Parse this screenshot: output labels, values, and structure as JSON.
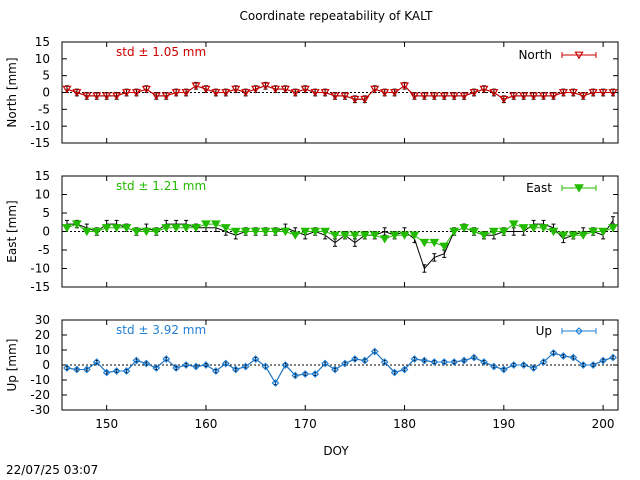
{
  "title": "Coordinate repeatability of KALT",
  "xlabel": "DOY",
  "timestamp": "22/07/25 03:07",
  "chart_data": [
    {
      "type": "line",
      "panel": "north",
      "ylabel": "North [mm]",
      "series_name": "North",
      "std_label": "std ± 1.05 mm",
      "color": "#cc0000",
      "marker": "triangle-down-open",
      "legend_position": "top-right",
      "zero_line": true,
      "xlim": [
        145.5,
        201.5
      ],
      "ylim": [
        -15,
        15
      ],
      "yticks": [
        15,
        10,
        5,
        0,
        -5,
        -10,
        -15
      ],
      "xticks": [
        150,
        160,
        170,
        180,
        190,
        200
      ],
      "x": [
        146,
        147,
        148,
        149,
        150,
        151,
        152,
        153,
        154,
        155,
        156,
        157,
        158,
        159,
        160,
        161,
        162,
        163,
        164,
        165,
        166,
        167,
        168,
        169,
        170,
        171,
        172,
        173,
        174,
        175,
        176,
        177,
        178,
        179,
        180,
        181,
        182,
        183,
        184,
        185,
        186,
        187,
        188,
        189,
        190,
        191,
        192,
        193,
        194,
        195,
        196,
        197,
        198,
        199,
        200,
        201
      ],
      "series": [
        {
          "name": "black",
          "color": "#000000",
          "values": [
            1,
            0,
            -1,
            -1,
            -1,
            -1,
            0,
            0,
            1,
            -1,
            -1,
            0,
            0,
            2,
            1,
            0,
            0,
            1,
            0,
            1,
            2,
            1,
            1,
            0,
            1,
            0,
            0,
            -1,
            -1,
            -2,
            -2,
            1,
            0,
            0,
            2,
            -1,
            -1,
            -1,
            -1,
            -1,
            -1,
            0,
            1,
            0,
            -2,
            -1,
            -1,
            -1,
            -1,
            -1,
            0,
            0,
            -1,
            0,
            0,
            0
          ],
          "errors": [
            1,
            1,
            1,
            1,
            1,
            1,
            1,
            1,
            1,
            1,
            1,
            1,
            1,
            1,
            1,
            1,
            1,
            1,
            1,
            1,
            1,
            1,
            1,
            1,
            1,
            1,
            1,
            1,
            1,
            1,
            1,
            1,
            1,
            1,
            1,
            1,
            1,
            1,
            1,
            1,
            1,
            1,
            1,
            1,
            1,
            1,
            1,
            1,
            1,
            1,
            1,
            1,
            1,
            1,
            1,
            1
          ]
        },
        {
          "name": "North",
          "color": "#cc0000",
          "values": [
            1,
            0,
            -1,
            -1,
            -1,
            -1,
            0,
            0,
            1,
            -1,
            -1,
            0,
            0,
            2,
            1,
            0,
            0,
            1,
            0,
            1,
            2,
            1,
            1,
            0,
            1,
            0,
            0,
            -1,
            -1,
            -2,
            -2,
            1,
            0,
            0,
            2,
            -1,
            -1,
            -1,
            -1,
            -1,
            -1,
            0,
            1,
            0,
            -2,
            -1,
            -1,
            -1,
            -1,
            -1,
            0,
            0,
            -1,
            0,
            0,
            0
          ]
        }
      ]
    },
    {
      "type": "line",
      "panel": "east",
      "ylabel": "East [mm]",
      "series_name": "East",
      "std_label": "std ± 1.21 mm",
      "color": "#22bb00",
      "marker": "triangle-down-filled",
      "legend_position": "top-right",
      "zero_line": true,
      "xlim": [
        145.5,
        201.5
      ],
      "ylim": [
        -15,
        15
      ],
      "yticks": [
        15,
        10,
        5,
        0,
        -5,
        -10,
        -15
      ],
      "xticks": [
        150,
        160,
        170,
        180,
        190,
        200
      ],
      "x": [
        146,
        147,
        148,
        149,
        150,
        151,
        152,
        153,
        154,
        155,
        156,
        157,
        158,
        159,
        160,
        161,
        162,
        163,
        164,
        165,
        166,
        167,
        168,
        169,
        170,
        171,
        172,
        173,
        174,
        175,
        176,
        177,
        178,
        179,
        180,
        181,
        182,
        183,
        184,
        185,
        186,
        187,
        188,
        189,
        190,
        191,
        192,
        193,
        194,
        195,
        196,
        197,
        198,
        199,
        200,
        201
      ],
      "series": [
        {
          "name": "black",
          "color": "#000000",
          "values": [
            2,
            2,
            1,
            0,
            2,
            2,
            1,
            0,
            1,
            0,
            2,
            2,
            2,
            1,
            1,
            1,
            0,
            -1,
            0,
            0,
            0,
            0,
            1,
            0,
            -1,
            0,
            -1,
            -3,
            -1,
            -3,
            -1,
            -1,
            0,
            -1,
            0,
            -2,
            -10,
            -7,
            -6,
            0,
            1,
            0,
            -1,
            -1,
            0,
            0,
            0,
            2,
            2,
            1,
            -2,
            -1,
            0,
            0,
            -1,
            3
          ],
          "errors": [
            1,
            1,
            1,
            1,
            1,
            1,
            1,
            1,
            1,
            1,
            1,
            1,
            1,
            1,
            1,
            1,
            1,
            1,
            1,
            1,
            1,
            1,
            1,
            1,
            1,
            1,
            1,
            1,
            1,
            1,
            1,
            1,
            1,
            1,
            1,
            1,
            1,
            1,
            1,
            1,
            1,
            1,
            1,
            1,
            1,
            1,
            1,
            1,
            1,
            1,
            1,
            1,
            1,
            1,
            1,
            1
          ]
        },
        {
          "name": "East",
          "color": "#22bb00",
          "values": [
            1,
            2,
            0,
            0,
            1,
            1,
            1,
            0,
            0,
            0,
            1,
            1,
            1,
            1,
            2,
            2,
            1,
            0,
            0,
            0,
            0,
            0,
            0,
            -1,
            0,
            0,
            0,
            -1,
            -1,
            -1,
            -1,
            -1,
            -2,
            -1,
            -1,
            -1,
            -3,
            -3,
            -4,
            0,
            1,
            0,
            -1,
            0,
            0,
            2,
            1,
            1,
            1,
            0,
            -1,
            -1,
            -1,
            0,
            0,
            1
          ]
        }
      ]
    },
    {
      "type": "line",
      "panel": "up",
      "ylabel": "Up [mm]",
      "series_name": "Up",
      "std_label": "std ± 3.92 mm",
      "color": "#1f7fd6",
      "marker": "diamond-open",
      "legend_position": "top-right",
      "zero_line": true,
      "xlim": [
        145.5,
        201.5
      ],
      "ylim": [
        -30,
        30
      ],
      "yticks": [
        30,
        20,
        10,
        0,
        -10,
        -20,
        -30
      ],
      "xticks": [
        150,
        160,
        170,
        180,
        190,
        200
      ],
      "x": [
        146,
        147,
        148,
        149,
        150,
        151,
        152,
        153,
        154,
        155,
        156,
        157,
        158,
        159,
        160,
        161,
        162,
        163,
        164,
        165,
        166,
        167,
        168,
        169,
        170,
        171,
        172,
        173,
        174,
        175,
        176,
        177,
        178,
        179,
        180,
        181,
        182,
        183,
        184,
        185,
        186,
        187,
        188,
        189,
        190,
        191,
        192,
        193,
        194,
        195,
        196,
        197,
        198,
        199,
        200,
        201
      ],
      "series": [
        {
          "name": "black",
          "color": "#000000",
          "values": [
            -2,
            -3,
            -3,
            2,
            -5,
            -4,
            -4,
            3,
            1,
            -2,
            4,
            -2,
            0,
            -1,
            0,
            -4,
            1,
            -3,
            -1,
            4,
            -1,
            -12,
            0,
            -7,
            -6,
            -6,
            1,
            -3,
            1,
            4,
            3,
            9,
            2,
            -5,
            -3,
            4,
            3,
            2,
            2,
            2,
            3,
            5,
            2,
            -1,
            -3,
            0,
            0,
            -2,
            2,
            8,
            6,
            5,
            0,
            0,
            3,
            5
          ],
          "errors": [
            1,
            1,
            1,
            1,
            1,
            1,
            1,
            1,
            1,
            1,
            1,
            1,
            1,
            1,
            1,
            1,
            1,
            1,
            1,
            1,
            1,
            1,
            1,
            1,
            1,
            1,
            1,
            1,
            1,
            1,
            1,
            1,
            1,
            1,
            1,
            1,
            1,
            1,
            1,
            1,
            1,
            1,
            1,
            1,
            1,
            1,
            1,
            1,
            1,
            1,
            1,
            1,
            1,
            1,
            1,
            1
          ]
        },
        {
          "name": "Up",
          "color": "#1f7fd6",
          "values": [
            -2,
            -3,
            -3,
            2,
            -5,
            -4,
            -4,
            3,
            1,
            -2,
            4,
            -2,
            0,
            -1,
            0,
            -4,
            1,
            -3,
            -1,
            4,
            -1,
            -12,
            0,
            -7,
            -6,
            -6,
            1,
            -3,
            1,
            4,
            3,
            9,
            2,
            -5,
            -3,
            4,
            3,
            2,
            2,
            2,
            3,
            5,
            2,
            -1,
            -3,
            0,
            0,
            -2,
            2,
            8,
            6,
            5,
            0,
            0,
            3,
            5
          ]
        }
      ]
    }
  ]
}
